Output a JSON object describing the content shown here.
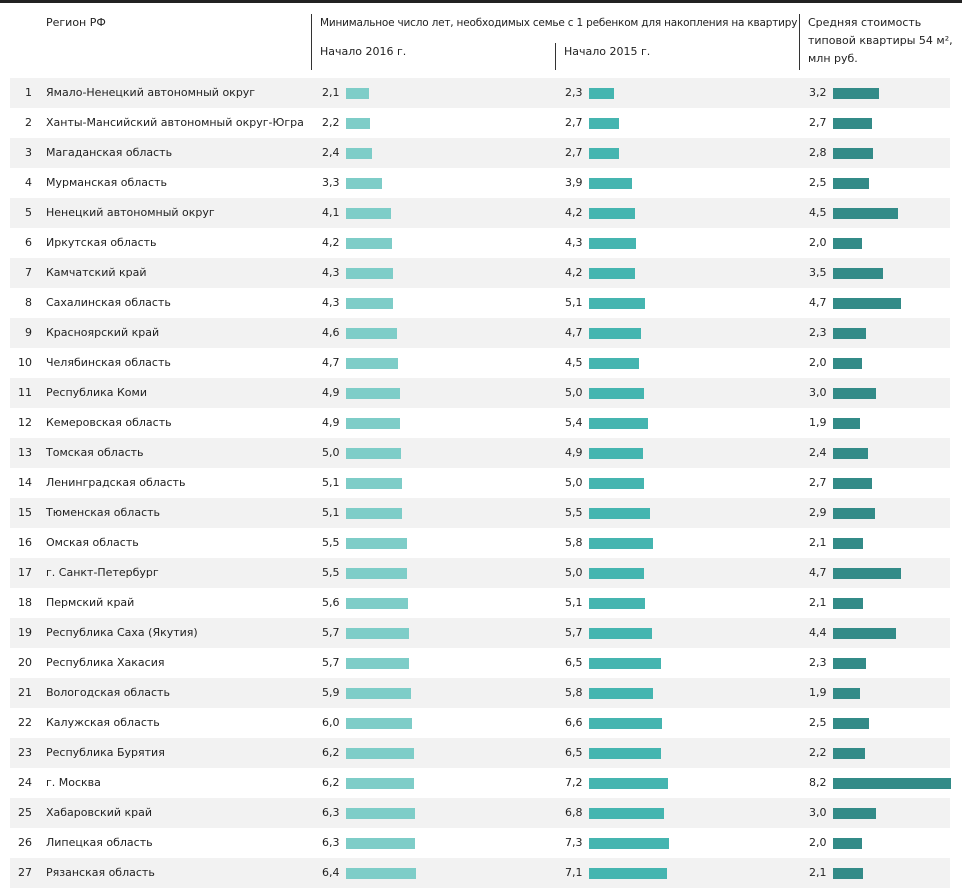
{
  "colors": {
    "y2016": "#7ecdc8",
    "y2015": "#45b5b0",
    "price": "#338b88",
    "row_alt": "#f2f2f2"
  },
  "header": {
    "region": "Регион РФ",
    "years_title": "Минимальное число лет, необходимых семье с 1 ребенком для накопления на квартиру",
    "col2016": "Начало 2016 г.",
    "col2015": "Начало 2015 г.",
    "price_line1": "Средняя стоимость",
    "price_line2": "типовой квартиры 54 м²,",
    "price_line3": "млн руб."
  },
  "chart_data": {
    "type": "table",
    "columns": [
      "Регион РФ",
      "Начало 2016 г.",
      "Начало 2015 г.",
      "Средняя стоимость типовой квартиры 54 м², млн руб."
    ],
    "rows": [
      {
        "n": "1",
        "region": "Ямало-Ненецкий автономный округ",
        "y2016": "2,1",
        "y2015": "2,3",
        "price": "3,2"
      },
      {
        "n": "2",
        "region": "Ханты-Мансийский автономный округ-Югра",
        "y2016": "2,2",
        "y2015": "2,7",
        "price": "2,7"
      },
      {
        "n": "3",
        "region": "Магаданская область",
        "y2016": "2,4",
        "y2015": "2,7",
        "price": "2,8"
      },
      {
        "n": "4",
        "region": "Мурманская область",
        "y2016": "3,3",
        "y2015": "3,9",
        "price": "2,5"
      },
      {
        "n": "5",
        "region": "Ненецкий автономный округ",
        "y2016": "4,1",
        "y2015": "4,2",
        "price": "4,5"
      },
      {
        "n": "6",
        "region": "Иркутская область",
        "y2016": "4,2",
        "y2015": "4,3",
        "price": "2,0"
      },
      {
        "n": "7",
        "region": "Камчатский край",
        "y2016": "4,3",
        "y2015": "4,2",
        "price": "3,5"
      },
      {
        "n": "8",
        "region": "Сахалинская область",
        "y2016": "4,3",
        "y2015": "5,1",
        "price": "4,7"
      },
      {
        "n": "9",
        "region": "Красноярский край",
        "y2016": "4,6",
        "y2015": "4,7",
        "price": "2,3"
      },
      {
        "n": "10",
        "region": "Челябинская область",
        "y2016": "4,7",
        "y2015": "4,5",
        "price": "2,0"
      },
      {
        "n": "11",
        "region": "Республика Коми",
        "y2016": "4,9",
        "y2015": "5,0",
        "price": "3,0"
      },
      {
        "n": "12",
        "region": "Кемеровская область",
        "y2016": "4,9",
        "y2015": "5,4",
        "price": "1,9"
      },
      {
        "n": "13",
        "region": "Томская область",
        "y2016": "5,0",
        "y2015": "4,9",
        "price": "2,4"
      },
      {
        "n": "14",
        "region": "Ленинградская область",
        "y2016": "5,1",
        "y2015": "5,0",
        "price": "2,7"
      },
      {
        "n": "15",
        "region": "Тюменская область",
        "y2016": "5,1",
        "y2015": "5,5",
        "price": "2,9"
      },
      {
        "n": "16",
        "region": "Омская область",
        "y2016": "5,5",
        "y2015": "5,8",
        "price": "2,1"
      },
      {
        "n": "17",
        "region": "г. Санкт-Петербург",
        "y2016": "5,5",
        "y2015": "5,0",
        "price": "4,7"
      },
      {
        "n": "18",
        "region": "Пермский край",
        "y2016": "5,6",
        "y2015": "5,1",
        "price": "2,1"
      },
      {
        "n": "19",
        "region": "Республика Саха (Якутия)",
        "y2016": "5,7",
        "y2015": "5,7",
        "price": "4,4"
      },
      {
        "n": "20",
        "region": "Республика Хакасия",
        "y2016": "5,7",
        "y2015": "6,5",
        "price": "2,3"
      },
      {
        "n": "21",
        "region": "Вологодская область",
        "y2016": "5,9",
        "y2015": "5,8",
        "price": "1,9"
      },
      {
        "n": "22",
        "region": "Калужская область",
        "y2016": "6,0",
        "y2015": "6,6",
        "price": "2,5"
      },
      {
        "n": "23",
        "region": "Республика Бурятия",
        "y2016": "6,2",
        "y2015": "6,5",
        "price": "2,2"
      },
      {
        "n": "24",
        "region": "г. Москва",
        "y2016": "6,2",
        "y2015": "7,2",
        "price": "8,2"
      },
      {
        "n": "25",
        "region": "Хабаровский край",
        "y2016": "6,3",
        "y2015": "6,8",
        "price": "3,0"
      },
      {
        "n": "26",
        "region": "Липецкая область",
        "y2016": "6,3",
        "y2015": "7,3",
        "price": "2,0"
      },
      {
        "n": "27",
        "region": "Рязанская область",
        "y2016": "6,4",
        "y2015": "7,1",
        "price": "2,1"
      }
    ]
  }
}
